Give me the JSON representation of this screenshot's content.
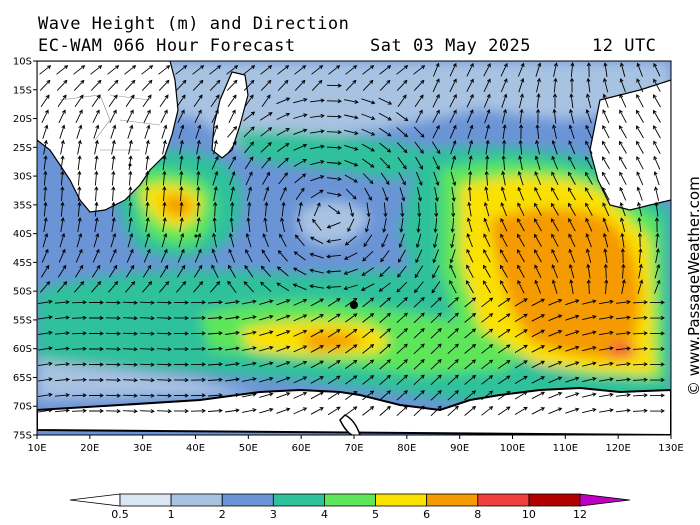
{
  "title": {
    "line1": "Wave Height (m) and Direction",
    "model": "EC-WAM 066 Hour Forecast",
    "date": "Sat 03 May 2025",
    "time": "12 UTC"
  },
  "credit": "© www.PassageWeather.com",
  "map": {
    "region": "Southern Indian Ocean",
    "lon_ticks": [
      "10E",
      "20E",
      "30E",
      "40E",
      "50E",
      "60E",
      "70E",
      "80E",
      "90E",
      "100E",
      "110E",
      "120E",
      "130E"
    ],
    "lat_ticks": [
      "10S",
      "15S",
      "20S",
      "25S",
      "30S",
      "35S",
      "40S",
      "45S",
      "50S",
      "55S",
      "60S",
      "65S",
      "70S",
      "75S"
    ],
    "lon_range_deg": [
      10,
      130
    ],
    "lat_range_deg": [
      -75,
      -10
    ],
    "arrows": "wave direction vectors"
  },
  "legend": {
    "unit": "m",
    "labels": [
      "0.5",
      "1",
      "2",
      "3",
      "4",
      "5",
      "6",
      "8",
      "10",
      "12"
    ],
    "colors": [
      "#ffffff",
      "#dbe6f4",
      "#a8c2e2",
      "#6b94d6",
      "#2ec19b",
      "#5de65a",
      "#fae100",
      "#f59a00",
      "#ef3f3f",
      "#b00000",
      "#c000c0"
    ]
  },
  "colors": {
    "land": "#ffffff",
    "ice": "#ffffff",
    "coast": "#000000"
  }
}
